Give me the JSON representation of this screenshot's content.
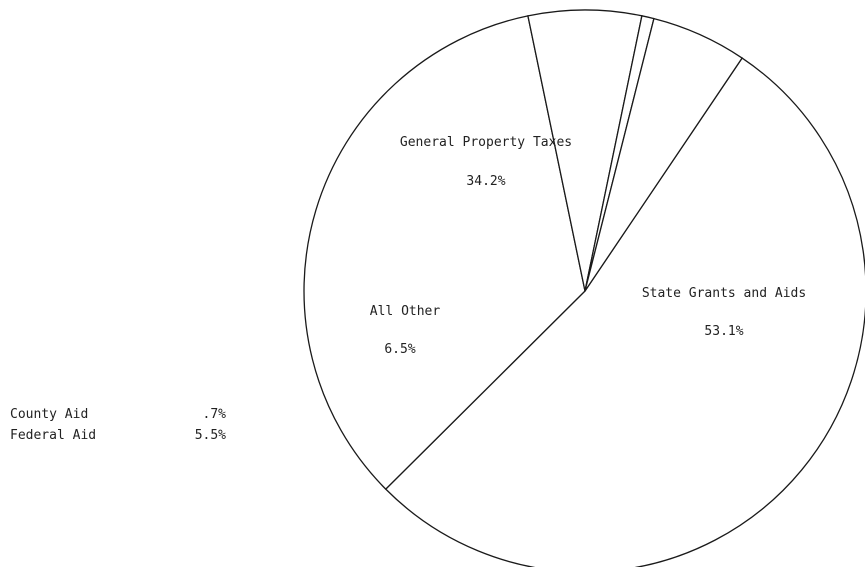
{
  "chart_data": {
    "type": "pie",
    "title": "",
    "slices": [
      {
        "label": "State Grants and Aids",
        "value_text": "53.1%",
        "value": 53.1
      },
      {
        "label": "General Property Taxes",
        "value_text": "34.2%",
        "value": 34.2
      },
      {
        "label": "All Other",
        "value_text": "6.5%",
        "value": 6.5
      },
      {
        "label": "County Aid",
        "value_text": ".7%",
        "value": 0.7
      },
      {
        "label": "Federal Aid",
        "value_text": "5.5%",
        "value": 5.5
      }
    ],
    "side_legend": [
      {
        "label": "County Aid",
        "value_text": ".7%"
      },
      {
        "label": "Federal Aid",
        "value_text": "5.5%"
      }
    ]
  }
}
